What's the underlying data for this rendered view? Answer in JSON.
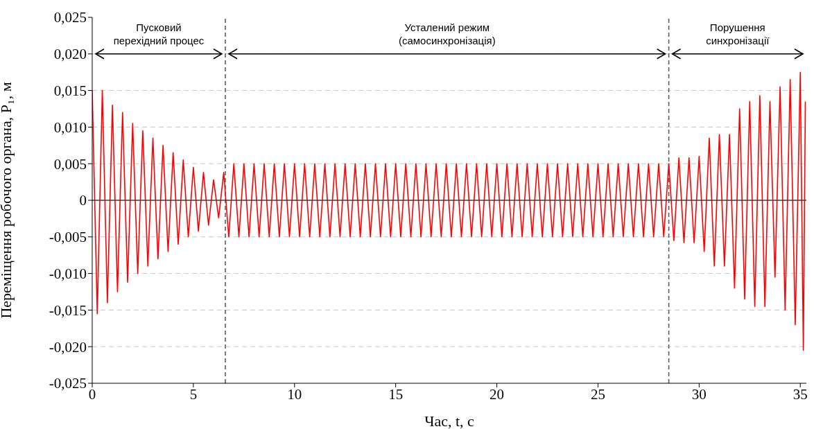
{
  "chart_data": {
    "type": "line",
    "xlabel": "Час, t, с",
    "ylabel": "Переміщення робочого органа, P₁, м",
    "xlim": [
      0,
      35.3
    ],
    "xticks": [
      0,
      5,
      10,
      15,
      20,
      25,
      30,
      35
    ],
    "ylim": [
      -0.025,
      0.025
    ],
    "yticks": [
      {
        "value": -0.025,
        "label": "-0,025"
      },
      {
        "value": -0.02,
        "label": "-0,020"
      },
      {
        "value": -0.015,
        "label": "-0,015"
      },
      {
        "value": -0.01,
        "label": "-0,010"
      },
      {
        "value": -0.005,
        "label": "-0,005"
      },
      {
        "value": 0,
        "label": "0"
      },
      {
        "value": 0.005,
        "label": "0,005"
      },
      {
        "value": 0.01,
        "label": "0,010"
      },
      {
        "value": 0.015,
        "label": "0,015"
      },
      {
        "value": 0.02,
        "label": "0,020"
      },
      {
        "value": 0.025,
        "label": "0,025"
      }
    ],
    "grid": "y",
    "line_style": "solid",
    "marker": "none",
    "ref_lines": [
      {
        "axis": "y",
        "value": 0,
        "color": "#404040",
        "line_style": "solid"
      },
      {
        "axis": "x",
        "value": 6.58,
        "color": "#555555",
        "line_style": "dashed"
      },
      {
        "axis": "x",
        "value": 28.5,
        "color": "#555555",
        "line_style": "dashed"
      }
    ],
    "annotations": [
      "Пусковий\nперехідний процес",
      "Усталений режим\n(самосинхронізація)",
      "Порушення\nсинхронізації"
    ],
    "series": [
      {
        "color": "#ff0000",
        "x": [
          0,
          0.25,
          0.5,
          0.75,
          1,
          1.25,
          1.5,
          1.75,
          2,
          2.25,
          2.5,
          2.75,
          3,
          3.25,
          3.5,
          3.75,
          4,
          4.25,
          4.5,
          4.75,
          5,
          5.25,
          5.5,
          5.75,
          6,
          6.25,
          6.5,
          6.75,
          7,
          7.25,
          7.5,
          7.75,
          8,
          8.25,
          8.5,
          8.75,
          9,
          9.25,
          9.5,
          9.75,
          10,
          10.25,
          10.5,
          10.75,
          11,
          11.25,
          11.5,
          11.75,
          12,
          12.25,
          12.5,
          12.75,
          13,
          13.25,
          13.5,
          13.75,
          14,
          14.25,
          14.5,
          14.75,
          15,
          15.25,
          15.5,
          15.75,
          16,
          16.25,
          16.5,
          16.75,
          17,
          17.25,
          17.5,
          17.75,
          18,
          18.25,
          18.5,
          18.75,
          19,
          19.25,
          19.5,
          19.75,
          20,
          20.25,
          20.5,
          20.75,
          21,
          21.25,
          21.5,
          21.75,
          22,
          22.25,
          22.5,
          22.75,
          23,
          23.25,
          23.5,
          23.75,
          24,
          24.25,
          24.5,
          24.75,
          25,
          25.25,
          25.5,
          25.75,
          26,
          26.25,
          26.5,
          26.75,
          27,
          27.25,
          27.5,
          27.75,
          28,
          28.25,
          28.5,
          28.75,
          29,
          29.25,
          29.5,
          29.75,
          30,
          30.25,
          30.5,
          30.75,
          31,
          31.25,
          31.5,
          31.75,
          32,
          32.25,
          32.5,
          32.75,
          33,
          33.25,
          33.5,
          33.75,
          34,
          34.25,
          34.5,
          34.75,
          35,
          35.15,
          35.25
        ],
        "values": [
          0.015,
          -0.0155,
          0.015,
          -0.014,
          0.013,
          -0.0125,
          0.012,
          -0.0112,
          0.0105,
          -0.01,
          0.0095,
          -0.009,
          0.0085,
          -0.008,
          0.0075,
          -0.007,
          0.0065,
          -0.006,
          0.0055,
          -0.005,
          0.0045,
          -0.0042,
          0.0038,
          -0.0034,
          0.0028,
          -0.0024,
          0.0038,
          -0.005,
          0.005,
          -0.005,
          0.005,
          -0.005,
          0.005,
          -0.005,
          0.005,
          -0.005,
          0.005,
          -0.005,
          0.005,
          -0.005,
          0.005,
          -0.005,
          0.005,
          -0.005,
          0.005,
          -0.005,
          0.005,
          -0.005,
          0.005,
          -0.005,
          0.005,
          -0.005,
          0.005,
          -0.005,
          0.005,
          -0.005,
          0.005,
          -0.005,
          0.005,
          -0.005,
          0.005,
          -0.005,
          0.005,
          -0.005,
          0.005,
          -0.005,
          0.005,
          -0.005,
          0.005,
          -0.005,
          0.005,
          -0.005,
          0.005,
          -0.005,
          0.005,
          -0.005,
          0.005,
          -0.005,
          0.005,
          -0.005,
          0.005,
          -0.005,
          0.005,
          -0.005,
          0.005,
          -0.005,
          0.005,
          -0.005,
          0.005,
          -0.005,
          0.005,
          -0.005,
          0.005,
          -0.005,
          0.005,
          -0.005,
          0.005,
          -0.005,
          0.005,
          -0.005,
          0.005,
          -0.005,
          0.005,
          -0.005,
          0.005,
          -0.005,
          0.005,
          -0.005,
          0.005,
          -0.005,
          0.005,
          -0.005,
          0.005,
          -0.005,
          0.005,
          -0.0055,
          0.0058,
          -0.0058,
          0.0058,
          -0.0058,
          0.006,
          -0.007,
          0.0085,
          -0.009,
          0.009,
          -0.009,
          0.009,
          -0.012,
          0.0125,
          -0.0135,
          0.0135,
          -0.0145,
          0.0143,
          -0.0145,
          0.0135,
          -0.0105,
          0.0155,
          -0.015,
          0.0165,
          -0.017,
          0.0175,
          -0.0205,
          0.0135
        ]
      }
    ]
  }
}
